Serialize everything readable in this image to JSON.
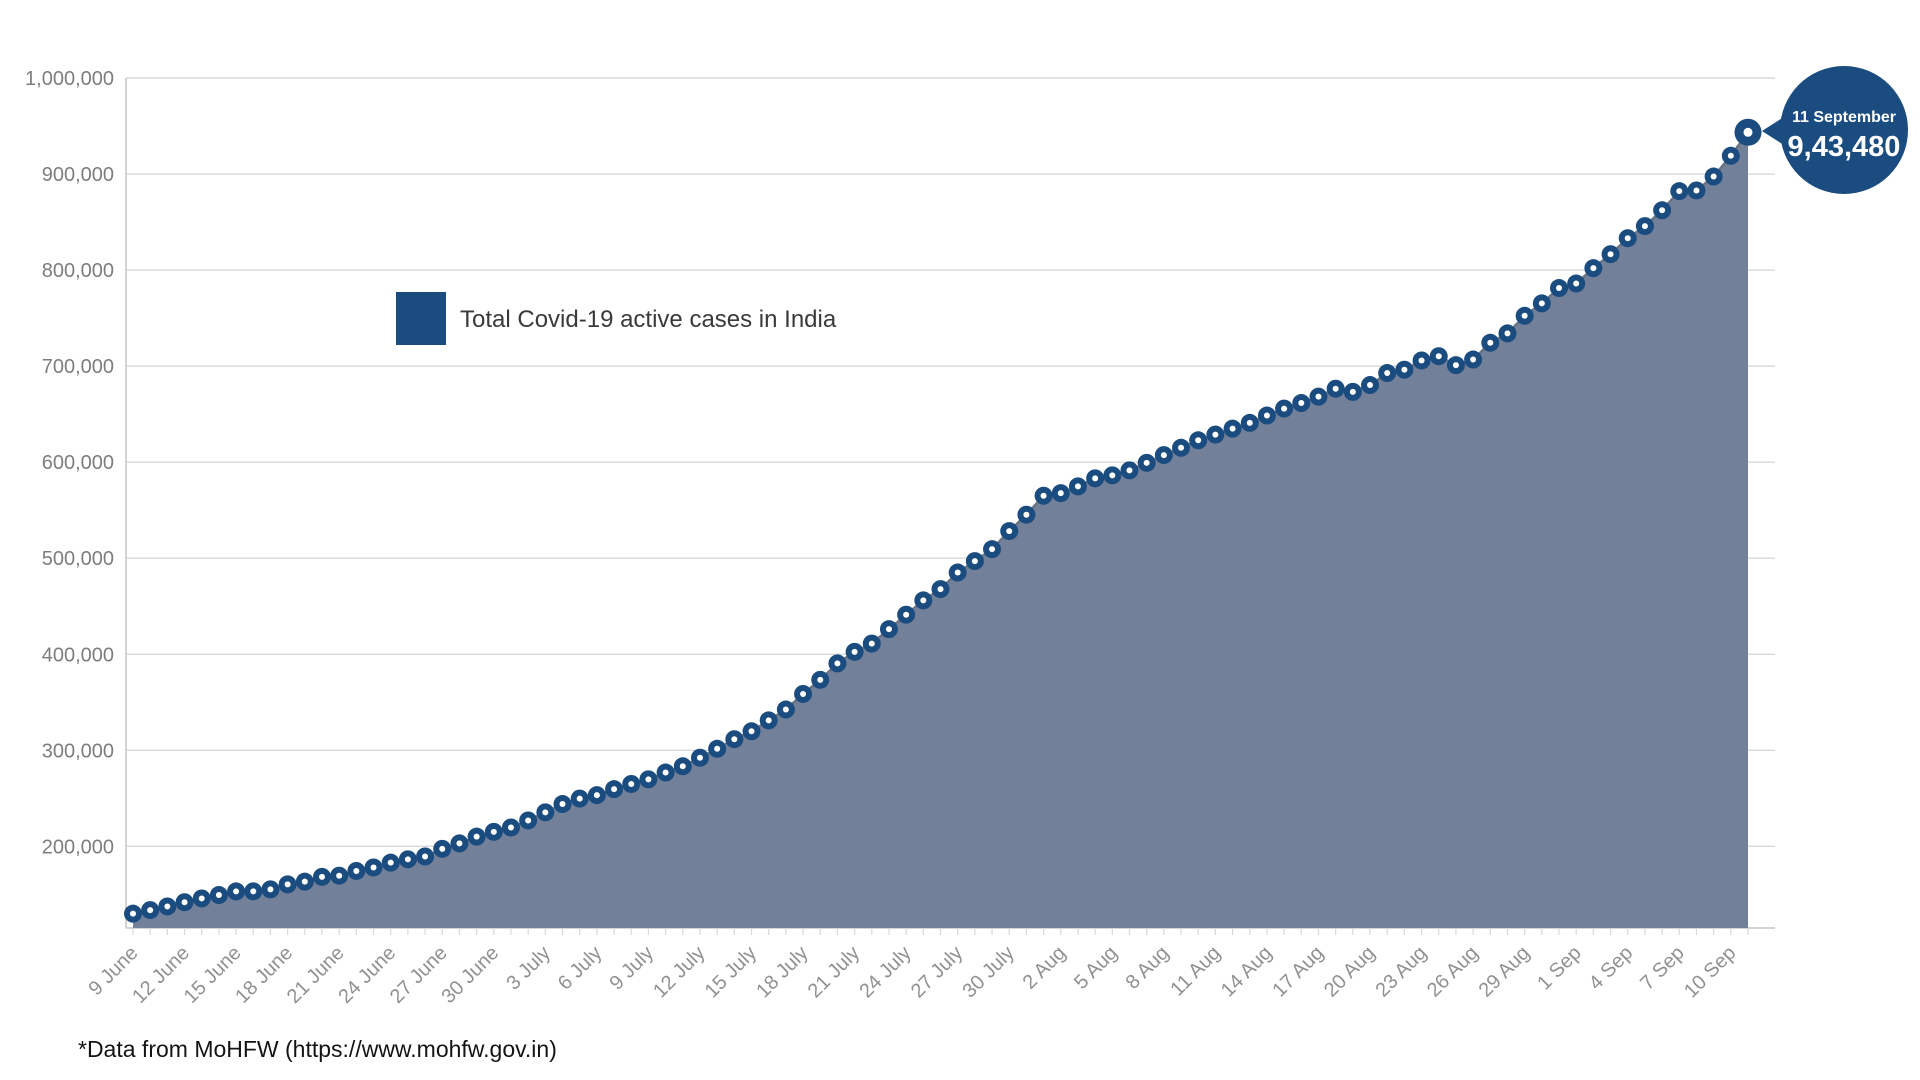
{
  "chart_data": {
    "type": "area",
    "legend": "Total Covid-19 active cases in India",
    "grid": "horizontal",
    "legend_position": "upper-left-inside",
    "ylim": [
      115000,
      1000000
    ],
    "y_ticks": [
      200000,
      300000,
      400000,
      500000,
      600000,
      700000,
      800000,
      900000,
      1000000
    ],
    "x_label_every": 3,
    "x": [
      "9 June",
      "10 June",
      "11 June",
      "12 June",
      "13 June",
      "14 June",
      "15 June",
      "16 June",
      "17 June",
      "18 June",
      "19 June",
      "20 June",
      "21 June",
      "22 June",
      "23 June",
      "24 June",
      "25 June",
      "26 June",
      "27 June",
      "28 June",
      "29 June",
      "30 June",
      "1 July",
      "2 July",
      "3 July",
      "4 July",
      "5 July",
      "6 July",
      "7 July",
      "8 July",
      "9 July",
      "10 July",
      "11 July",
      "12 July",
      "13 July",
      "14 July",
      "15 July",
      "16 July",
      "17 July",
      "18 July",
      "19 July",
      "20 July",
      "21 July",
      "22 July",
      "23 July",
      "24 July",
      "25 July",
      "26 July",
      "27 July",
      "28 July",
      "29 July",
      "30 July",
      "31 July",
      "1 Aug",
      "2 Aug",
      "3 Aug",
      "4 Aug",
      "5 Aug",
      "6 Aug",
      "7 Aug",
      "8 Aug",
      "9 Aug",
      "10 Aug",
      "11 Aug",
      "12 Aug",
      "13 Aug",
      "14 Aug",
      "15 Aug",
      "16 Aug",
      "17 Aug",
      "18 Aug",
      "19 Aug",
      "20 Aug",
      "21 Aug",
      "22 Aug",
      "23 Aug",
      "24 Aug",
      "25 Aug",
      "26 Aug",
      "27 Aug",
      "28 Aug",
      "29 Aug",
      "30 Aug",
      "31 Aug",
      "1 Sep",
      "2 Sep",
      "3 Sep",
      "4 Sep",
      "5 Sep",
      "6 Sep",
      "7 Sep",
      "8 Sep",
      "9 Sep",
      "10 Sep",
      "11 Sep"
    ],
    "values": [
      129917,
      133632,
      137448,
      141842,
      145779,
      149348,
      153106,
      153178,
      155227,
      160384,
      163248,
      168269,
      169451,
      174387,
      178014,
      183022,
      186514,
      189463,
      197387,
      203051,
      210120,
      215125,
      219665,
      226947,
      235433,
      244071,
      249761,
      253287,
      259557,
      264944,
      269789,
      276882,
      283407,
      292258,
      301609,
      311565,
      319840,
      331146,
      342473,
      358692,
      373379,
      390459,
      402529,
      411133,
      426167,
      441208,
      456071,
      467882,
      485114,
      496988,
      509447,
      528242,
      545318,
      565103,
      567730,
      574800,
      583200,
      586300,
      591500,
      599300,
      607400,
      615000,
      622800,
      628700,
      634900,
      640900,
      648600,
      655800,
      661600,
      668200,
      676500,
      673200,
      680300,
      692800,
      696300,
      705900,
      710300,
      701000,
      706900,
      724300,
      734100,
      752400,
      765300,
      781300,
      785996,
      802000,
      816500,
      833200,
      845800,
      862300,
      882200,
      882900,
      897400,
      919000,
      943480
    ],
    "annotation": {
      "date": "11 September",
      "value_label": "9,43,480",
      "value": 943480,
      "index": 94
    }
  },
  "footer": {
    "source": "*Data from MoHFW (https://www.mohfw.gov.in)"
  },
  "colors": {
    "navy": "#1b4c80",
    "area_fill": "#72809a",
    "line": "#6a7384",
    "grid": "#d9d9d9",
    "axis": "#c6c6c6",
    "x_tick_text": "#919191",
    "y_tick_text": "#7d7d7d",
    "legend_text": "#3a3a3a",
    "footer_text": "#141414",
    "dot_hole": "#ffffff"
  }
}
